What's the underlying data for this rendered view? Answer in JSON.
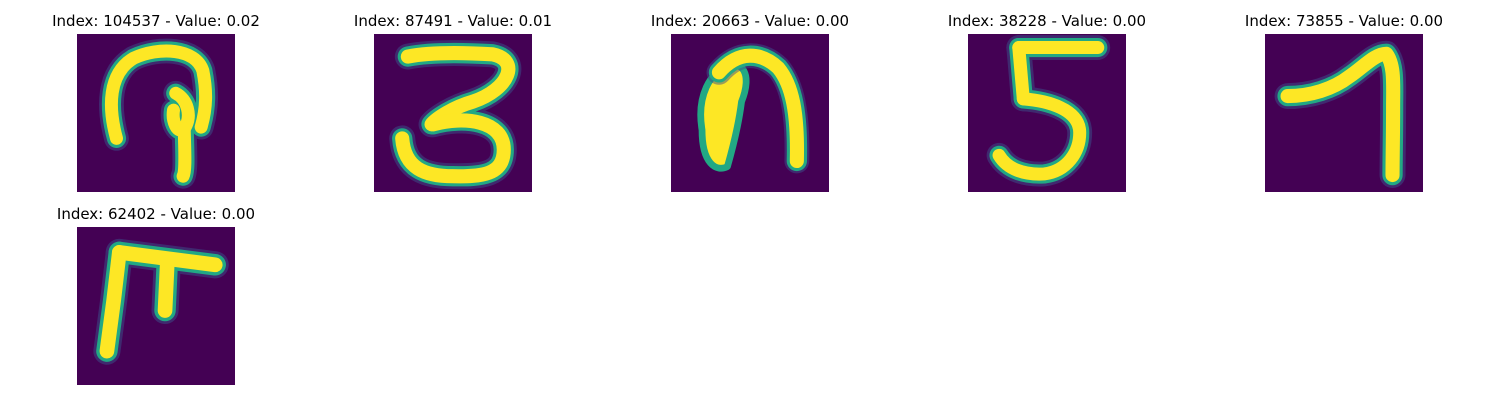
{
  "panels": [
    {
      "title": "Index: 104537 - Value: 0.02",
      "glyph": "digit-9-like"
    },
    {
      "title": "Index: 87491 - Value: 0.01",
      "glyph": "digit-3"
    },
    {
      "title": "Index: 20663 - Value: 0.00",
      "glyph": "arch-shape"
    },
    {
      "title": "Index: 38228 - Value: 0.00",
      "glyph": "digit-5"
    },
    {
      "title": "Index: 73855 - Value: 0.00",
      "glyph": "digit-7"
    },
    {
      "title": "Index: 62402 - Value: 0.00",
      "glyph": "digit-F-like"
    }
  ],
  "colors": {
    "background": "#440154",
    "stroke_core": "#fde725",
    "stroke_edge": "#22a884",
    "stroke_halo": "#3b528b"
  }
}
